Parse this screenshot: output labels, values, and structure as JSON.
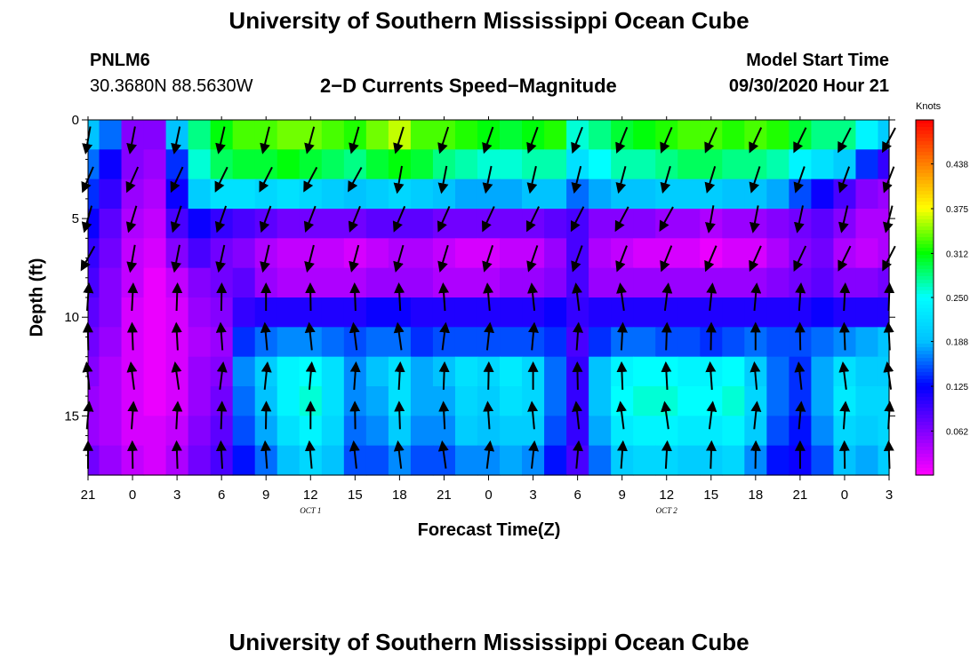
{
  "title": "University of Southern Mississippi Ocean Cube",
  "footer_title": "University of Southern Mississippi Ocean Cube",
  "station": "PNLM6",
  "coordinates": "30.3680N 88.5630W",
  "subtitle": "2−D Currents Speed−Magnitude",
  "model_start_label": "Model Start Time",
  "model_start_value": "09/30/2020 Hour 21",
  "chart_data": {
    "type": "heatmap",
    "xlabel": "Forecast Time(Z)",
    "ylabel": "Depth (ft)",
    "x_tick_labels": [
      "21",
      "0",
      "3",
      "6",
      "9",
      "12",
      "15",
      "18",
      "21",
      "0",
      "3",
      "6",
      "9",
      "12",
      "15",
      "18",
      "21",
      "0",
      "3"
    ],
    "x_range_hours": [
      0,
      54
    ],
    "day_labels": [
      {
        "text": "OCT 1",
        "hour": 15
      },
      {
        "text": "OCT 2",
        "hour": 39
      }
    ],
    "y_ticks": [
      0,
      5,
      10,
      15
    ],
    "ylim": [
      0,
      18
    ],
    "y_inverted": true,
    "colorbar": {
      "title": "Knots",
      "tick_labels": [
        "0.438",
        "0.375",
        "0.312",
        "0.250",
        "0.188",
        "0.125",
        "0.062"
      ],
      "tick_values": [
        0.438,
        0.375,
        0.312,
        0.25,
        0.188,
        0.125,
        0.062
      ],
      "range": [
        0,
        0.5
      ],
      "colors": [
        "#ff00ff",
        "#8000ff",
        "#0000ff",
        "#00c0ff",
        "#00ffff",
        "#00ff00",
        "#ffff00",
        "#ff8000",
        "#ff0000"
      ]
    },
    "depth_bins_ft": [
      0.75,
      2.25,
      3.75,
      5.25,
      6.75,
      8.25,
      9.75,
      11.25,
      12.75,
      14.25,
      15.75,
      17.25
    ],
    "time_hours": [
      0,
      1.5,
      3,
      4.5,
      6,
      7.5,
      9,
      10.5,
      12,
      13.5,
      15,
      16.5,
      18,
      19.5,
      21,
      22.5,
      24,
      25.5,
      27,
      28.5,
      30,
      31.5,
      33,
      34.5,
      36,
      37.5,
      39,
      40.5,
      42,
      43.5,
      45,
      46.5,
      48,
      49.5,
      51,
      52.5,
      54
    ],
    "speed_knots": [
      [
        0.19,
        0.16,
        0.06,
        0.06,
        0.19,
        0.28,
        0.31,
        0.33,
        0.33,
        0.34,
        0.34,
        0.33,
        0.32,
        0.34,
        0.36,
        0.33,
        0.33,
        0.32,
        0.31,
        0.3,
        0.31,
        0.32,
        0.26,
        0.28,
        0.3,
        0.31,
        0.32,
        0.33,
        0.33,
        0.32,
        0.33,
        0.32,
        0.3,
        0.28,
        0.28,
        0.24,
        0.2
      ],
      [
        0.16,
        0.12,
        0.06,
        0.05,
        0.14,
        0.26,
        0.29,
        0.3,
        0.3,
        0.31,
        0.3,
        0.29,
        0.28,
        0.3,
        0.31,
        0.3,
        0.28,
        0.27,
        0.26,
        0.26,
        0.27,
        0.27,
        0.22,
        0.25,
        0.27,
        0.27,
        0.28,
        0.29,
        0.29,
        0.28,
        0.28,
        0.27,
        0.24,
        0.22,
        0.2,
        0.14,
        0.1
      ],
      [
        0.14,
        0.1,
        0.05,
        0.04,
        0.12,
        0.2,
        0.22,
        0.22,
        0.21,
        0.22,
        0.21,
        0.2,
        0.19,
        0.2,
        0.21,
        0.2,
        0.19,
        0.18,
        0.18,
        0.18,
        0.19,
        0.19,
        0.16,
        0.18,
        0.19,
        0.19,
        0.2,
        0.2,
        0.2,
        0.19,
        0.19,
        0.18,
        0.15,
        0.12,
        0.09,
        0.06,
        0.05
      ],
      [
        0.12,
        0.08,
        0.04,
        0.03,
        0.09,
        0.12,
        0.1,
        0.09,
        0.08,
        0.07,
        0.07,
        0.07,
        0.07,
        0.08,
        0.08,
        0.08,
        0.07,
        0.07,
        0.07,
        0.07,
        0.07,
        0.08,
        0.09,
        0.06,
        0.06,
        0.06,
        0.05,
        0.05,
        0.04,
        0.05,
        0.05,
        0.06,
        0.07,
        0.08,
        0.06,
        0.04,
        0.04
      ],
      [
        0.1,
        0.07,
        0.03,
        0.02,
        0.06,
        0.09,
        0.07,
        0.06,
        0.04,
        0.03,
        0.03,
        0.03,
        0.02,
        0.03,
        0.04,
        0.04,
        0.03,
        0.02,
        0.02,
        0.03,
        0.03,
        0.05,
        0.09,
        0.04,
        0.03,
        0.02,
        0.02,
        0.02,
        0.01,
        0.02,
        0.02,
        0.04,
        0.06,
        0.07,
        0.04,
        0.03,
        0.04
      ],
      [
        0.09,
        0.06,
        0.03,
        0.01,
        0.03,
        0.06,
        0.07,
        0.08,
        0.05,
        0.04,
        0.04,
        0.04,
        0.04,
        0.05,
        0.05,
        0.05,
        0.04,
        0.04,
        0.04,
        0.05,
        0.05,
        0.06,
        0.09,
        0.05,
        0.05,
        0.05,
        0.05,
        0.05,
        0.05,
        0.05,
        0.05,
        0.06,
        0.07,
        0.08,
        0.06,
        0.06,
        0.07
      ],
      [
        0.08,
        0.06,
        0.02,
        0.01,
        0.02,
        0.05,
        0.06,
        0.1,
        0.11,
        0.11,
        0.11,
        0.11,
        0.11,
        0.12,
        0.12,
        0.11,
        0.11,
        0.11,
        0.11,
        0.11,
        0.11,
        0.12,
        0.1,
        0.11,
        0.11,
        0.11,
        0.11,
        0.11,
        0.11,
        0.11,
        0.11,
        0.11,
        0.11,
        0.12,
        0.11,
        0.11,
        0.11
      ],
      [
        0.07,
        0.05,
        0.02,
        0.01,
        0.02,
        0.04,
        0.05,
        0.14,
        0.16,
        0.17,
        0.17,
        0.16,
        0.15,
        0.16,
        0.16,
        0.14,
        0.15,
        0.15,
        0.15,
        0.15,
        0.15,
        0.14,
        0.09,
        0.14,
        0.16,
        0.16,
        0.15,
        0.15,
        0.14,
        0.15,
        0.16,
        0.15,
        0.15,
        0.16,
        0.17,
        0.18,
        0.19
      ],
      [
        0.06,
        0.04,
        0.02,
        0.01,
        0.02,
        0.05,
        0.06,
        0.17,
        0.2,
        0.24,
        0.25,
        0.22,
        0.17,
        0.19,
        0.22,
        0.18,
        0.19,
        0.22,
        0.21,
        0.23,
        0.21,
        0.16,
        0.1,
        0.19,
        0.24,
        0.25,
        0.25,
        0.24,
        0.24,
        0.25,
        0.2,
        0.16,
        0.14,
        0.18,
        0.22,
        0.2,
        0.2
      ],
      [
        0.05,
        0.04,
        0.02,
        0.01,
        0.02,
        0.05,
        0.07,
        0.16,
        0.19,
        0.24,
        0.26,
        0.22,
        0.17,
        0.18,
        0.22,
        0.18,
        0.18,
        0.21,
        0.2,
        0.22,
        0.21,
        0.16,
        0.1,
        0.19,
        0.25,
        0.26,
        0.26,
        0.25,
        0.25,
        0.26,
        0.21,
        0.16,
        0.14,
        0.18,
        0.23,
        0.21,
        0.21
      ],
      [
        0.05,
        0.04,
        0.02,
        0.02,
        0.03,
        0.06,
        0.08,
        0.15,
        0.18,
        0.22,
        0.24,
        0.21,
        0.16,
        0.17,
        0.2,
        0.17,
        0.17,
        0.2,
        0.19,
        0.2,
        0.2,
        0.15,
        0.1,
        0.18,
        0.23,
        0.24,
        0.24,
        0.23,
        0.23,
        0.24,
        0.2,
        0.15,
        0.13,
        0.17,
        0.21,
        0.2,
        0.21
      ],
      [
        0.07,
        0.05,
        0.03,
        0.02,
        0.04,
        0.07,
        0.09,
        0.13,
        0.16,
        0.19,
        0.21,
        0.19,
        0.15,
        0.15,
        0.17,
        0.15,
        0.15,
        0.17,
        0.17,
        0.18,
        0.17,
        0.13,
        0.09,
        0.16,
        0.2,
        0.21,
        0.21,
        0.2,
        0.2,
        0.21,
        0.17,
        0.13,
        0.12,
        0.15,
        0.19,
        0.18,
        0.2
      ]
    ]
  }
}
